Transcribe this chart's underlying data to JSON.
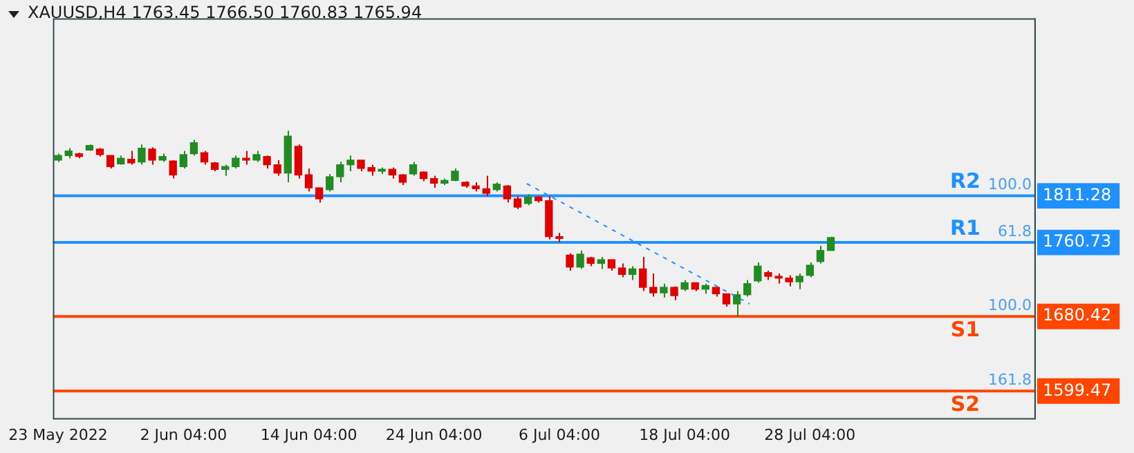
{
  "chart_data": {
    "type": "candlestick",
    "title": "XAUUSD,H4 1763.45 1766.50 1760.83 1765.94",
    "categories": [
      "23 May 2022",
      null,
      null,
      null,
      null,
      null,
      null,
      null,
      null,
      null,
      null,
      null,
      "2 Jun 04:00",
      null,
      null,
      null,
      null,
      null,
      null,
      null,
      null,
      null,
      null,
      null,
      "14 Jun 04:00",
      null,
      null,
      null,
      null,
      null,
      null,
      null,
      null,
      null,
      null,
      null,
      "24 Jun 04:00",
      null,
      null,
      null,
      null,
      null,
      null,
      null,
      null,
      null,
      null,
      null,
      "6 Jul 04:00",
      null,
      null,
      null,
      null,
      null,
      null,
      null,
      null,
      null,
      null,
      null,
      "18 Jul 04:00",
      null,
      null,
      null,
      null,
      null,
      null,
      null,
      null,
      null,
      null,
      null,
      "28 Jul 04:00",
      null,
      null,
      null,
      null,
      null,
      null,
      null,
      null,
      null,
      null,
      null,
      null,
      null,
      null,
      null,
      null,
      null,
      null,
      null,
      null,
      null
    ],
    "ohlc": [
      [
        1850,
        1857,
        1848,
        1855
      ],
      [
        1855,
        1863,
        1852,
        1860
      ],
      [
        1857,
        1858,
        1852,
        1854
      ],
      [
        1861,
        1867,
        1860,
        1866
      ],
      [
        1862,
        1863,
        1854,
        1856
      ],
      [
        1855,
        1855,
        1841,
        1843
      ],
      [
        1846,
        1855,
        1845,
        1852
      ],
      [
        1851,
        1860,
        1845,
        1847
      ],
      [
        1848,
        1867,
        1845,
        1863
      ],
      [
        1862,
        1864,
        1845,
        1850
      ],
      [
        1850,
        1857,
        1848,
        1854
      ],
      [
        1849,
        1850,
        1830,
        1834
      ],
      [
        1843,
        1860,
        1841,
        1856
      ],
      [
        1857,
        1872,
        1855,
        1869
      ],
      [
        1858,
        1860,
        1845,
        1848
      ],
      [
        1847,
        1848,
        1838,
        1840
      ],
      [
        1840,
        1845,
        1833,
        1843
      ],
      [
        1843,
        1855,
        1841,
        1852
      ],
      [
        1852,
        1860,
        1845,
        1850
      ],
      [
        1850,
        1860,
        1848,
        1856
      ],
      [
        1854,
        1855,
        1841,
        1845
      ],
      [
        1845,
        1850,
        1833,
        1836
      ],
      [
        1836,
        1882,
        1826,
        1876
      ],
      [
        1865,
        1867,
        1830,
        1834
      ],
      [
        1834,
        1841,
        1816,
        1820
      ],
      [
        1820,
        1820,
        1804,
        1808
      ],
      [
        1818,
        1835,
        1816,
        1832
      ],
      [
        1832,
        1848,
        1826,
        1845
      ],
      [
        1845,
        1855,
        1838,
        1850
      ],
      [
        1850,
        1850,
        1838,
        1841
      ],
      [
        1842,
        1845,
        1833,
        1838
      ],
      [
        1838,
        1842,
        1835,
        1840
      ],
      [
        1840,
        1842,
        1830,
        1834
      ],
      [
        1834,
        1835,
        1823,
        1826
      ],
      [
        1835,
        1848,
        1833,
        1845
      ],
      [
        1837,
        1838,
        1827,
        1830
      ],
      [
        1830,
        1833,
        1820,
        1825
      ],
      [
        1825,
        1830,
        1823,
        1828
      ],
      [
        1828,
        1841,
        1827,
        1838
      ],
      [
        1826,
        1827,
        1820,
        1822
      ],
      [
        1822,
        1826,
        1816,
        1819
      ],
      [
        1819,
        1833,
        1811,
        1814
      ],
      [
        1818,
        1826,
        1816,
        1824
      ],
      [
        1822,
        1823,
        1804,
        1808
      ],
      [
        1808,
        1811,
        1797,
        1799
      ],
      [
        1803,
        1813,
        1801,
        1810
      ],
      [
        1810,
        1811,
        1804,
        1806
      ],
      [
        1806,
        1811,
        1764,
        1767
      ],
      [
        1767,
        1771,
        1761,
        1765
      ],
      [
        1747,
        1749,
        1730,
        1734
      ],
      [
        1734,
        1752,
        1732,
        1748
      ],
      [
        1744,
        1745,
        1735,
        1738
      ],
      [
        1738,
        1745,
        1732,
        1742
      ],
      [
        1742,
        1742,
        1730,
        1733
      ],
      [
        1733,
        1738,
        1723,
        1726
      ],
      [
        1726,
        1735,
        1720,
        1732
      ],
      [
        1732,
        1745,
        1708,
        1712
      ],
      [
        1712,
        1727,
        1702,
        1706
      ],
      [
        1706,
        1716,
        1701,
        1712
      ],
      [
        1712,
        1713,
        1698,
        1703
      ],
      [
        1710,
        1720,
        1708,
        1717
      ],
      [
        1717,
        1717,
        1708,
        1710
      ],
      [
        1710,
        1716,
        1705,
        1714
      ],
      [
        1712,
        1713,
        1702,
        1705
      ],
      [
        1705,
        1705,
        1691,
        1694
      ],
      [
        1694,
        1708,
        1680,
        1704
      ],
      [
        1704,
        1720,
        1702,
        1716
      ],
      [
        1719,
        1739,
        1717,
        1735
      ],
      [
        1728,
        1730,
        1720,
        1724
      ],
      [
        1724,
        1727,
        1716,
        1722
      ],
      [
        1722,
        1725,
        1713,
        1718
      ],
      [
        1718,
        1727,
        1710,
        1724
      ],
      [
        1725,
        1739,
        1723,
        1736
      ],
      [
        1740,
        1757,
        1738,
        1752
      ],
      [
        1752,
        1767,
        1752,
        1766
      ],
      null,
      null,
      null,
      null,
      null,
      null,
      null,
      null,
      null,
      null,
      null,
      null,
      null,
      null,
      null,
      null,
      null,
      null,
      null
    ],
    "colors": [
      "#228b22",
      "#228b22",
      "#e00000",
      "#228b22",
      "#e00000",
      "#e00000",
      "#228b22",
      "#e00000",
      "#228b22",
      "#e00000",
      "#228b22",
      "#e00000",
      "#228b22",
      "#228b22",
      "#e00000",
      "#e00000",
      "#228b22",
      "#228b22",
      "#e00000",
      "#228b22",
      "#e00000",
      "#e00000",
      "#228b22",
      "#e00000",
      "#e00000",
      "#e00000",
      "#228b22",
      "#228b22",
      "#228b22",
      "#e00000",
      "#e00000",
      "#228b22",
      "#e00000",
      "#e00000",
      "#228b22",
      "#e00000",
      "#e00000",
      "#228b22",
      "#228b22",
      "#e00000",
      "#e00000",
      "#e00000",
      "#228b22",
      "#e00000",
      "#e00000",
      "#228b22",
      "#e00000",
      "#e00000",
      "#e00000",
      "#e00000",
      "#228b22",
      "#e00000",
      "#228b22",
      "#e00000",
      "#e00000",
      "#228b22",
      "#e00000",
      "#e00000",
      "#228b22",
      "#e00000",
      "#228b22",
      "#e00000",
      "#228b22",
      "#e00000",
      "#e00000",
      "#228b22",
      "#228b22",
      "#228b22",
      "#e00000",
      "#e00000",
      "#e00000",
      "#228b22",
      "#228b22",
      "#228b22",
      "#228b22",
      null,
      null,
      null,
      null,
      null,
      null,
      null,
      null,
      null,
      null,
      null,
      null,
      null,
      null,
      null,
      null,
      null,
      null,
      null
    ],
    "ylim": [
      1570,
      2004
    ],
    "yticks": [
      1811.28,
      1760.73,
      1680.42,
      1599.47
    ],
    "legend": false,
    "ref_lines": [
      {
        "axis": "y",
        "value": 1811.28,
        "label": "R2",
        "color": "#1e90ff"
      },
      {
        "axis": "y",
        "value": 1760.73,
        "label": "R1",
        "color": "#1e90ff"
      },
      {
        "axis": "y",
        "value": 1680.42,
        "label": "S1",
        "color": "#ff4500"
      },
      {
        "axis": "y",
        "value": 1599.47,
        "label": "S2",
        "color": "#ff4500"
      }
    ],
    "annotations": [
      "100.0",
      "61.8",
      "100.0",
      "161.8"
    ]
  }
}
